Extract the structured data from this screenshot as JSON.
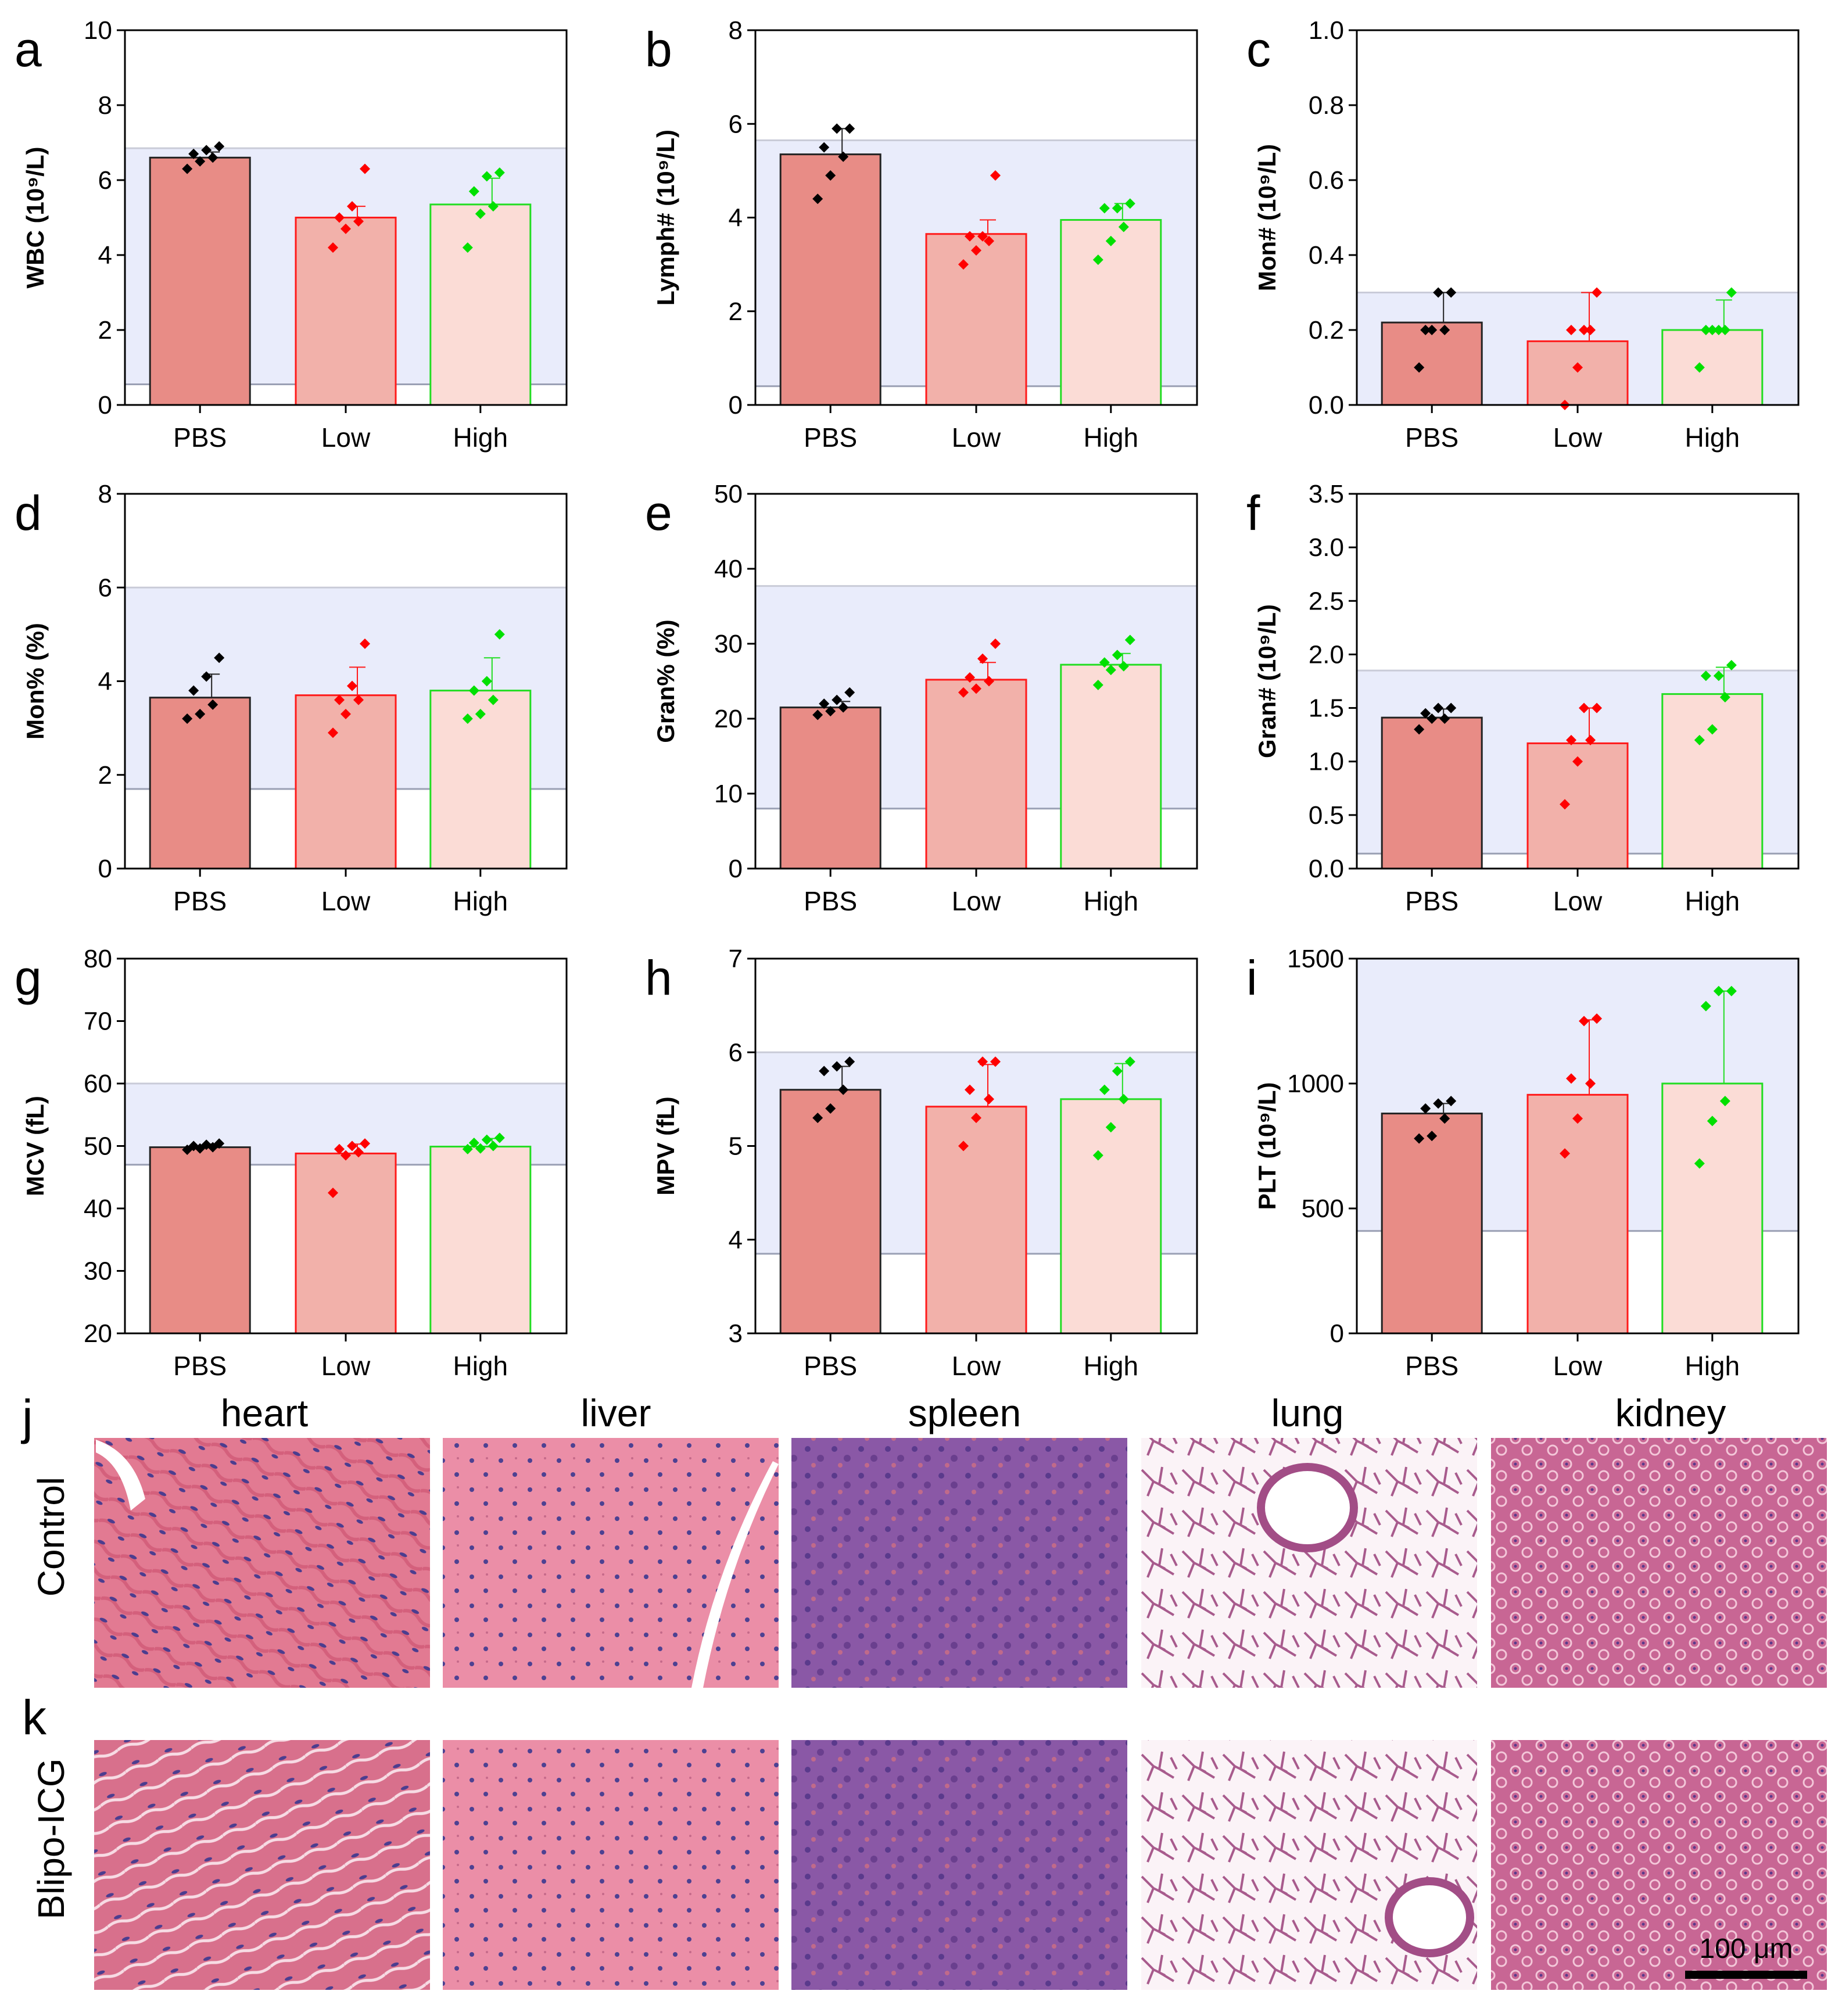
{
  "colors": {
    "bars": [
      "#e88c86",
      "#f2b1aa",
      "#fbdcd6"
    ],
    "edges": [
      "#222222",
      "#ff1a1a",
      "#22dd22"
    ],
    "points": [
      "#000000",
      "#ff0000",
      "#00e000"
    ],
    "refband": "#e9ecfb",
    "heart": "#e07a92",
    "liver": "#e887a2",
    "spleen": "#8c5aa6",
    "lung": "#f1dbe7",
    "kidney": "#c56694"
  },
  "chart_data": [
    {
      "type": "bar",
      "letter": "a",
      "ylabel": "WBC (10⁹/L)",
      "categories": [
        "PBS",
        "Low",
        "High"
      ],
      "values": [
        6.6,
        5.0,
        5.35
      ],
      "errors": [
        0.15,
        0.3,
        0.7
      ],
      "ylim": [
        0,
        10
      ],
      "yticks": [
        "0",
        "2",
        "4",
        "6",
        "8",
        "10"
      ],
      "ytick_values": [
        0,
        2,
        4,
        6,
        8,
        10
      ],
      "ref_range": [
        0.55,
        6.85
      ],
      "points": [
        [
          6.3,
          6.5,
          6.6,
          6.7,
          6.8,
          6.9
        ],
        [
          4.2,
          4.7,
          4.9,
          5.0,
          5.3,
          6.3
        ],
        [
          4.2,
          5.1,
          5.3,
          5.7,
          6.1,
          6.2
        ]
      ]
    },
    {
      "type": "bar",
      "letter": "b",
      "ylabel": "Lymph# (10⁹/L)",
      "categories": [
        "PBS",
        "Low",
        "High"
      ],
      "values": [
        5.35,
        3.65,
        3.95
      ],
      "errors": [
        0.55,
        0.3,
        0.35
      ],
      "ylim": [
        0,
        8
      ],
      "yticks": [
        "0",
        "2",
        "4",
        "6",
        "8"
      ],
      "ytick_values": [
        0,
        2,
        4,
        6,
        8
      ],
      "ref_range": [
        0.4,
        5.65
      ],
      "points": [
        [
          4.4,
          4.9,
          5.3,
          5.5,
          5.9,
          5.9
        ],
        [
          3.0,
          3.3,
          3.5,
          3.6,
          3.6,
          4.9
        ],
        [
          3.1,
          3.5,
          3.8,
          4.2,
          4.2,
          4.3
        ]
      ]
    },
    {
      "type": "bar",
      "letter": "c",
      "ylabel": "Mon# (10⁹/L)",
      "categories": [
        "PBS",
        "Low",
        "High"
      ],
      "values": [
        0.22,
        0.17,
        0.2
      ],
      "errors": [
        0.08,
        0.13,
        0.08
      ],
      "ylim": [
        0,
        1.0
      ],
      "yticks": [
        "0.0",
        "0.2",
        "0.4",
        "0.6",
        "0.8",
        "1.0"
      ],
      "ytick_values": [
        0,
        0.2,
        0.4,
        0.6,
        0.8,
        1.0
      ],
      "ref_range": [
        0,
        0.3
      ],
      "points": [
        [
          0.1,
          0.2,
          0.2,
          0.2,
          0.3,
          0.3
        ],
        [
          0.0,
          0.1,
          0.2,
          0.2,
          0.2,
          0.3
        ],
        [
          0.1,
          0.2,
          0.2,
          0.2,
          0.2,
          0.3
        ]
      ]
    },
    {
      "type": "bar",
      "letter": "d",
      "ylabel": "Mon% (%)",
      "categories": [
        "PBS",
        "Low",
        "High"
      ],
      "values": [
        3.65,
        3.7,
        3.8
      ],
      "errors": [
        0.5,
        0.6,
        0.7
      ],
      "ylim": [
        0,
        8
      ],
      "yticks": [
        "0",
        "2",
        "4",
        "6",
        "8"
      ],
      "ytick_values": [
        0,
        2,
        4,
        6,
        8
      ],
      "ref_range": [
        1.7,
        6.0
      ],
      "points": [
        [
          3.2,
          3.3,
          3.5,
          3.8,
          4.1,
          4.5
        ],
        [
          2.9,
          3.3,
          3.6,
          3.6,
          3.9,
          4.8
        ],
        [
          3.2,
          3.3,
          3.6,
          3.8,
          4.0,
          5.0
        ]
      ]
    },
    {
      "type": "bar",
      "letter": "e",
      "ylabel": "Gran% (%)",
      "categories": [
        "PBS",
        "Low",
        "High"
      ],
      "values": [
        21.5,
        25.2,
        27.2
      ],
      "errors": [
        0.8,
        2.3,
        1.5
      ],
      "ylim": [
        0,
        50
      ],
      "yticks": [
        "0",
        "10",
        "20",
        "30",
        "40",
        "50"
      ],
      "ytick_values": [
        0,
        10,
        20,
        30,
        40,
        50
      ],
      "ref_range": [
        8,
        37.7
      ],
      "points": [
        [
          20.5,
          21.0,
          21.5,
          22.0,
          22.5,
          23.5
        ],
        [
          23.5,
          24.0,
          25.0,
          25.5,
          28.0,
          30.0
        ],
        [
          24.5,
          26.5,
          27.0,
          27.5,
          28.5,
          30.5
        ]
      ]
    },
    {
      "type": "bar",
      "letter": "f",
      "ylabel": "Gran# (10⁹/L)",
      "categories": [
        "PBS",
        "Low",
        "High"
      ],
      "values": [
        1.41,
        1.17,
        1.63
      ],
      "errors": [
        0.08,
        0.33,
        0.25
      ],
      "ylim": [
        0,
        3.5
      ],
      "yticks": [
        "0.0",
        "0.5",
        "1.0",
        "1.5",
        "2.0",
        "2.5",
        "3.0",
        "3.5"
      ],
      "ytick_values": [
        0,
        0.5,
        1.0,
        1.5,
        2.0,
        2.5,
        3.0,
        3.5
      ],
      "ref_range": [
        0.14,
        1.85
      ],
      "points": [
        [
          1.3,
          1.4,
          1.4,
          1.45,
          1.5,
          1.5
        ],
        [
          0.6,
          1.0,
          1.2,
          1.2,
          1.5,
          1.5
        ],
        [
          1.2,
          1.3,
          1.6,
          1.8,
          1.8,
          1.9
        ]
      ]
    },
    {
      "type": "bar",
      "letter": "g",
      "ylabel": "MCV (fL)",
      "categories": [
        "PBS",
        "Low",
        "High"
      ],
      "values": [
        49.8,
        48.8,
        49.9
      ],
      "errors": [
        0.5,
        1.5,
        1.3
      ],
      "ylim": [
        20,
        80
      ],
      "yticks": [
        "20",
        "30",
        "40",
        "50",
        "60",
        "70",
        "80"
      ],
      "ytick_values": [
        20,
        30,
        40,
        50,
        60,
        70,
        80
      ],
      "ref_range": [
        47,
        60
      ],
      "points": [
        [
          49.4,
          49.6,
          49.8,
          50.0,
          50.2,
          50.4
        ],
        [
          42.5,
          48.5,
          49.0,
          49.5,
          50.0,
          50.4
        ],
        [
          49.5,
          49.6,
          50.0,
          50.5,
          51.0,
          51.3
        ]
      ]
    },
    {
      "type": "bar",
      "letter": "h",
      "ylabel": "MPV (fL)",
      "categories": [
        "PBS",
        "Low",
        "High"
      ],
      "values": [
        5.6,
        5.42,
        5.5
      ],
      "errors": [
        0.25,
        0.45,
        0.38
      ],
      "ylim": [
        3,
        7
      ],
      "yticks": [
        "3",
        "4",
        "5",
        "6",
        "7"
      ],
      "ytick_values": [
        3,
        4,
        5,
        6,
        7
      ],
      "ref_range": [
        3.85,
        6.0
      ],
      "points": [
        [
          5.3,
          5.4,
          5.6,
          5.8,
          5.85,
          5.9
        ],
        [
          5.0,
          5.3,
          5.5,
          5.6,
          5.9,
          5.9
        ],
        [
          4.9,
          5.2,
          5.5,
          5.6,
          5.8,
          5.9
        ]
      ]
    },
    {
      "type": "bar",
      "letter": "i",
      "ylabel": "PLT (10⁹/L)",
      "categories": [
        "PBS",
        "Low",
        "High"
      ],
      "values": [
        880,
        955,
        1000
      ],
      "errors": [
        40,
        300,
        370
      ],
      "ylim": [
        0,
        1500
      ],
      "yticks": [
        "0",
        "500",
        "1000",
        "1500"
      ],
      "ytick_values": [
        0,
        500,
        1000,
        1500
      ],
      "ref_range": [
        410,
        1500
      ],
      "points": [
        [
          780,
          790,
          860,
          900,
          920,
          930
        ],
        [
          720,
          860,
          1000,
          1020,
          1250,
          1260
        ],
        [
          680,
          850,
          930,
          1310,
          1370,
          1370
        ]
      ]
    }
  ],
  "histology": {
    "organs": [
      "heart",
      "liver",
      "spleen",
      "lung",
      "kidney"
    ],
    "rows": [
      {
        "panel": "j",
        "label": "Control"
      },
      {
        "panel": "k",
        "label": "Blipo-ICG"
      }
    ],
    "scale_bar": "100 μm"
  }
}
